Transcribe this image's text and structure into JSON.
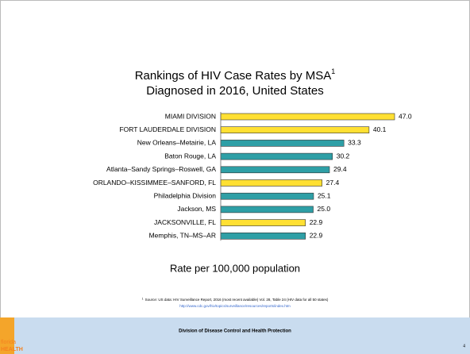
{
  "chart_data": {
    "type": "bar",
    "orientation": "horizontal",
    "title": "Rankings of HIV Case Rates by MSA",
    "title_superscript": "1",
    "subtitle": "Diagnosed in 2016, United States",
    "categories": [
      "MIAMI DIVISION",
      "FORT LAUDERDALE DIVISION",
      "New Orleans–Metairie, LA",
      "Baton Rouge, LA",
      "Atlanta–Sandy Springs–Roswell, GA",
      "ORLANDO–KISSIMMEE–SANFORD, FL",
      "Philadelphia Division",
      "Jackson, MS",
      "JACKSONVILLE, FL",
      "Memphis, TN–MS–AR"
    ],
    "values": [
      47.0,
      40.1,
      33.3,
      30.2,
      29.4,
      27.4,
      25.1,
      25.0,
      22.9,
      22.9
    ],
    "value_labels": [
      "47.0",
      "40.1",
      "33.3",
      "30.2",
      "29.4",
      "27.4",
      "25.1",
      "25.0",
      "22.9",
      "22.9"
    ],
    "colors": [
      "#ffe033",
      "#ffe033",
      "#2e9fa6",
      "#2e9fa6",
      "#2e9fa6",
      "#ffe033",
      "#2e9fa6",
      "#2e9fa6",
      "#ffe033",
      "#2e9fa6"
    ],
    "xlim": [
      0,
      50
    ],
    "xlabel": "Rate per 100,000 population"
  },
  "footnote": {
    "marker": "1",
    "text": "Source: US data: HIV Surveillance Report, 2016 (most recent available) Vol. 28, Table 24 (HIV data for all 50 states)",
    "url": "http://www.cdc.gov/hiv/topics/surveillance/resources/reports/index.htm"
  },
  "footer": {
    "text": "Division of Disease Control and Health Protection",
    "page": "4",
    "logo_top": "florida",
    "logo_bottom": "HEALTH"
  }
}
